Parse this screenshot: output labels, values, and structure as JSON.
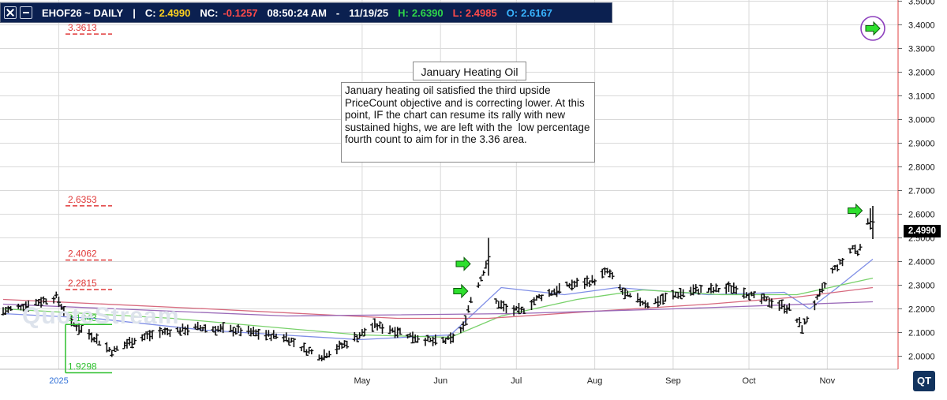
{
  "header": {
    "symbol_label": "EHOF26 ~ DAILY",
    "sep": "|",
    "close_label": "C:",
    "close_value": "2.4990",
    "nc_label": "NC:",
    "nc_value": "-0.1257",
    "time": "08:50:24 AM",
    "dash": "-",
    "date": "11/19/25",
    "high_label": "H:",
    "high_value": "2.6390",
    "low_label": "L:",
    "low_value": "2.4985",
    "open_label": "O:",
    "open_value": "2.6167"
  },
  "annotation": {
    "title": "January Heating Oil",
    "body": "January heating oil satisfied the third upside PriceCount objective and is correcting lower. At this point, IF the chart can resume its rally with new sustained highs, we are left with the  low percentage fourth count to aim for in the 3.36 area."
  },
  "watermark": "QuoteStream",
  "logo": "QT",
  "colors": {
    "background": "#ffffff",
    "header_bg": "#0b2050",
    "grid": "#d9d9d9",
    "price_bar": "#111111",
    "target_red": "#e03a3a",
    "target_green": "#2ec02e",
    "ma_blue": "#7f8ee6",
    "ma_green": "#78d16a",
    "ma_red": "#d76a7e",
    "ma_purple": "#9a6ab8",
    "arrow_fill": "#2ee02e",
    "axis_red": "#e04040"
  },
  "chart_data": {
    "type": "ohlc",
    "title": "EHOF26 ~ DAILY",
    "ylim": [
      1.945,
      3.505
    ],
    "y_ticks": [
      "2.0000",
      "2.1000",
      "2.2000",
      "2.3000",
      "2.4000",
      "2.5000",
      "2.6000",
      "2.7000",
      "2.8000",
      "2.9000",
      "3.0000",
      "3.1000",
      "3.2000",
      "3.3000",
      "3.4000",
      "3.5000"
    ],
    "x_labels": [
      {
        "label": "2025",
        "date": "2025-01-01"
      },
      {
        "label": "May",
        "date": "2025-05-01"
      },
      {
        "label": "Jun",
        "date": "2025-06-01"
      },
      {
        "label": "Jul",
        "date": "2025-07-01"
      },
      {
        "label": "Aug",
        "date": "2025-08-01"
      },
      {
        "label": "Sep",
        "date": "2025-09-01"
      },
      {
        "label": "Oct",
        "date": "2025-10-01"
      },
      {
        "label": "Nov",
        "date": "2025-11-01"
      }
    ],
    "grid": true,
    "last_price": "2.4990",
    "targets": [
      {
        "label": "3.3613",
        "value": 3.3613,
        "color": "red"
      },
      {
        "label": "2.6353",
        "value": 2.6353,
        "color": "red"
      },
      {
        "label": "2.4062",
        "value": 2.4062,
        "color": "red"
      },
      {
        "label": "2.2815",
        "value": 2.2815,
        "color": "red"
      },
      {
        "label": "2.1343",
        "value": 2.1343,
        "color": "green"
      },
      {
        "label": "1.9298",
        "value": 1.9298,
        "color": "green"
      }
    ],
    "arrows": [
      {
        "date": "2025-06-10",
        "value": 2.39
      },
      {
        "date": "2025-06-09",
        "value": 2.275
      },
      {
        "date": "2025-11-12",
        "value": 2.615
      },
      {
        "date": "2025-11-19",
        "value": 3.385
      }
    ],
    "ohlc_anchors": [
      [
        "2024-12-10",
        2.19
      ],
      [
        "2024-12-31",
        2.25
      ],
      [
        "2025-01-06",
        2.14
      ],
      [
        "2025-01-15",
        2.08
      ],
      [
        "2025-01-22",
        2.02
      ],
      [
        "2025-01-31",
        2.07
      ],
      [
        "2025-02-10",
        2.1
      ],
      [
        "2025-02-25",
        2.12
      ],
      [
        "2025-03-12",
        2.11
      ],
      [
        "2025-03-24",
        2.09
      ],
      [
        "2025-04-01",
        2.08
      ],
      [
        "2025-04-08",
        2.03
      ],
      [
        "2025-04-15",
        2.0
      ],
      [
        "2025-04-24",
        2.05
      ],
      [
        "2025-05-06",
        2.13
      ],
      [
        "2025-05-14",
        2.11
      ],
      [
        "2025-05-22",
        2.08
      ],
      [
        "2025-05-30",
        2.06
      ],
      [
        "2025-06-05",
        2.07
      ],
      [
        "2025-06-10",
        2.12
      ],
      [
        "2025-06-13",
        2.24
      ],
      [
        "2025-06-17",
        2.33
      ],
      [
        "2025-06-20",
        2.42
      ],
      [
        "2025-06-23",
        2.23
      ],
      [
        "2025-06-27",
        2.2
      ],
      [
        "2025-07-03",
        2.19
      ],
      [
        "2025-07-10",
        2.25
      ],
      [
        "2025-07-22",
        2.3
      ],
      [
        "2025-08-01",
        2.32
      ],
      [
        "2025-08-06",
        2.36
      ],
      [
        "2025-08-13",
        2.26
      ],
      [
        "2025-08-22",
        2.22
      ],
      [
        "2025-09-02",
        2.26
      ],
      [
        "2025-09-10",
        2.28
      ],
      [
        "2025-09-17",
        2.28
      ],
      [
        "2025-09-26",
        2.29
      ],
      [
        "2025-10-03",
        2.25
      ],
      [
        "2025-10-10",
        2.23
      ],
      [
        "2025-10-17",
        2.2
      ],
      [
        "2025-10-22",
        2.12
      ],
      [
        "2025-10-28",
        2.24
      ],
      [
        "2025-11-03",
        2.36
      ],
      [
        "2025-11-07",
        2.4
      ],
      [
        "2025-11-11",
        2.46
      ],
      [
        "2025-11-13",
        2.44
      ],
      [
        "2025-11-17",
        2.56
      ],
      [
        "2025-11-19",
        2.5
      ]
    ],
    "moving_averages": [
      {
        "color": "blue",
        "points": [
          [
            "2024-12-10",
            2.18
          ],
          [
            "2025-01-15",
            2.16
          ],
          [
            "2025-02-28",
            2.11
          ],
          [
            "2025-04-30",
            2.07
          ],
          [
            "2025-06-05",
            2.09
          ],
          [
            "2025-06-25",
            2.29
          ],
          [
            "2025-07-20",
            2.26
          ],
          [
            "2025-08-10",
            2.29
          ],
          [
            "2025-09-15",
            2.26
          ],
          [
            "2025-10-15",
            2.27
          ],
          [
            "2025-10-25",
            2.2
          ],
          [
            "2025-11-05",
            2.29
          ],
          [
            "2025-11-19",
            2.41
          ]
        ]
      },
      {
        "color": "green",
        "points": [
          [
            "2024-12-10",
            2.2
          ],
          [
            "2025-02-15",
            2.16
          ],
          [
            "2025-04-30",
            2.09
          ],
          [
            "2025-06-05",
            2.08
          ],
          [
            "2025-06-25",
            2.17
          ],
          [
            "2025-07-25",
            2.24
          ],
          [
            "2025-08-20",
            2.28
          ],
          [
            "2025-09-20",
            2.26
          ],
          [
            "2025-10-20",
            2.26
          ],
          [
            "2025-11-19",
            2.33
          ]
        ]
      },
      {
        "color": "red",
        "points": [
          [
            "2024-12-10",
            2.24
          ],
          [
            "2025-03-01",
            2.2
          ],
          [
            "2025-05-15",
            2.16
          ],
          [
            "2025-06-20",
            2.16
          ],
          [
            "2025-08-01",
            2.19
          ],
          [
            "2025-09-15",
            2.22
          ],
          [
            "2025-10-20",
            2.25
          ],
          [
            "2025-11-19",
            2.29
          ]
        ]
      },
      {
        "color": "purple",
        "points": [
          [
            "2024-12-10",
            2.22
          ],
          [
            "2025-04-01",
            2.17
          ],
          [
            "2025-06-30",
            2.18
          ],
          [
            "2025-09-01",
            2.2
          ],
          [
            "2025-11-19",
            2.23
          ]
        ]
      }
    ]
  }
}
